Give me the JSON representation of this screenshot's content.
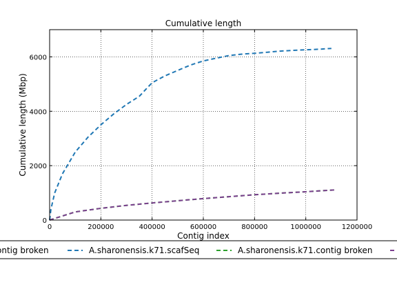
{
  "chart_data": {
    "type": "line",
    "title": "Cumulative length",
    "xlabel": "Contig index",
    "ylabel": "Cumulative length (Mbp)",
    "xlim": [
      0,
      1200000
    ],
    "ylim": [
      0,
      7000
    ],
    "xticks": [
      0,
      200000,
      400000,
      600000,
      800000,
      1000000,
      1200000
    ],
    "yticks": [
      0,
      2000,
      4000,
      6000
    ],
    "grid": true,
    "legend_position": "below plot, horizontal, clipped at left and right edges",
    "legend_visible_entries": [
      "ontig broken",
      "A.sharonensis.k71.scafSeq",
      "A.sharonensis.k71.contig broken"
    ],
    "series": [
      {
        "name": "A.sharonensis.k71.scafSeq",
        "color": "#1f77b4",
        "style": "dashed",
        "x": [
          0,
          5000,
          20000,
          50000,
          100000,
          150000,
          200000,
          250000,
          300000,
          350000,
          400000,
          450000,
          500000,
          550000,
          600000,
          650000,
          700000,
          750000,
          800000,
          850000,
          900000,
          950000,
          1000000,
          1050000,
          1100000
        ],
        "y": [
          0,
          400,
          1000,
          1700,
          2500,
          3050,
          3500,
          3900,
          4250,
          4550,
          5050,
          5300,
          5500,
          5700,
          5850,
          5950,
          6050,
          6100,
          6130,
          6170,
          6210,
          6240,
          6260,
          6280,
          6310
        ]
      },
      {
        "name": "A.sharonensis.k71.contig broken",
        "color": "#2ca02c",
        "style": "dashed",
        "x": [
          0,
          50000,
          100000,
          200000,
          300000,
          400000,
          500000,
          600000,
          700000,
          800000,
          900000,
          1000000,
          1120000
        ],
        "y": [
          0,
          150,
          300,
          430,
          540,
          630,
          710,
          790,
          860,
          930,
          990,
          1040,
          1110
        ]
      },
      {
        "name": "",
        "color": "#7b3f8f",
        "style": "dashed",
        "x": [
          0,
          50000,
          100000,
          200000,
          300000,
          400000,
          500000,
          600000,
          700000,
          800000,
          900000,
          1000000,
          1120000
        ],
        "y": [
          0,
          150,
          300,
          430,
          540,
          630,
          710,
          790,
          860,
          930,
          990,
          1040,
          1110
        ]
      }
    ]
  }
}
